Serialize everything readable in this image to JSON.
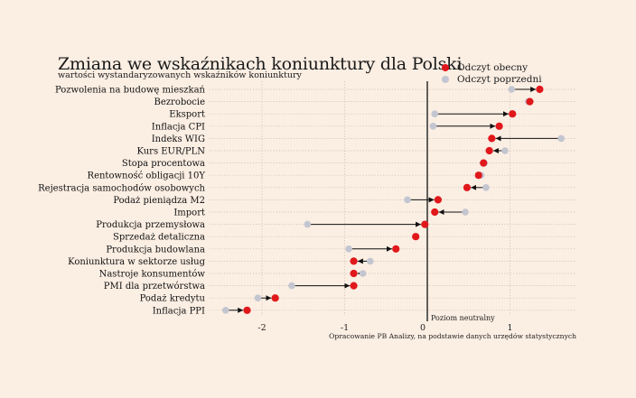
{
  "header": {
    "title": "Zmiana we wskaźnikach koniunktury dla Polski",
    "subtitle": "wartości wystandaryzowanych wskaźników koniunktury"
  },
  "legend": {
    "current_label": "Odczyt obecny",
    "previous_label": "Odczyt poprzedni"
  },
  "colors": {
    "current": "#e0181b",
    "previous": "#c3c6d0",
    "background": "#fbeee3"
  },
  "chart_data": {
    "type": "dumbbell",
    "title": "Zmiana we wskaźnikach koniunktury dla Polski",
    "subtitle": "wartości wystandaryzowanych wskaźników koniunktury",
    "xlim": [
      -2.6,
      1.65
    ],
    "xticks": [
      -2,
      -1,
      0,
      1
    ],
    "xtick_labels": [
      "-2",
      "-1",
      "0",
      "1"
    ],
    "grid": "horizontal dotted",
    "legend_position": "top-right",
    "zero_line_label": "Poziom neutralny",
    "source": "Opracowanie PB Analizy, na podstawie danych urzędów statystycznych",
    "series": [
      {
        "name": "Odczyt obecny",
        "key": "current"
      },
      {
        "name": "Odczyt poprzedni",
        "key": "previous"
      }
    ],
    "indicators": [
      {
        "label": "Pozwolenia na budowę mieszkań",
        "previous": 1.02,
        "current": 1.36
      },
      {
        "label": "Bezrobocie",
        "previous": 1.22,
        "current": 1.24
      },
      {
        "label": "Eksport",
        "previous": 0.09,
        "current": 1.03
      },
      {
        "label": "Inflacja CPI",
        "previous": 0.07,
        "current": 0.87
      },
      {
        "label": "Indeks WIG",
        "previous": 1.62,
        "current": 0.78
      },
      {
        "label": "Kurs EUR/PLN",
        "previous": 0.94,
        "current": 0.75
      },
      {
        "label": "Stopa procentowa",
        "previous": 0.69,
        "current": 0.68
      },
      {
        "label": "Rentowność obligacji 10Y",
        "previous": 0.65,
        "current": 0.62
      },
      {
        "label": "Rejestracja samochodów osobowych",
        "previous": 0.71,
        "current": 0.48
      },
      {
        "label": "Podaż pieniądza M2",
        "previous": -0.24,
        "current": 0.13
      },
      {
        "label": "Import",
        "previous": 0.46,
        "current": 0.09
      },
      {
        "label": "Produkcja przemysłowa",
        "previous": -1.45,
        "current": -0.03
      },
      {
        "label": "Sprzedaż detaliczna",
        "previous": -0.14,
        "current": -0.14
      },
      {
        "label": "Produkcja budowlana",
        "previous": -0.95,
        "current": -0.38
      },
      {
        "label": "Koniunktura w sektorze usług",
        "previous": -0.69,
        "current": -0.89
      },
      {
        "label": "Nastroje konsumentów",
        "previous": -0.78,
        "current": -0.89
      },
      {
        "label": "PMI dla przetwórstwa",
        "previous": -1.64,
        "current": -0.89
      },
      {
        "label": "Podaż kredytu",
        "previous": -2.05,
        "current": -1.84
      },
      {
        "label": "Inflacja PPI",
        "previous": -2.44,
        "current": -2.18
      }
    ]
  }
}
